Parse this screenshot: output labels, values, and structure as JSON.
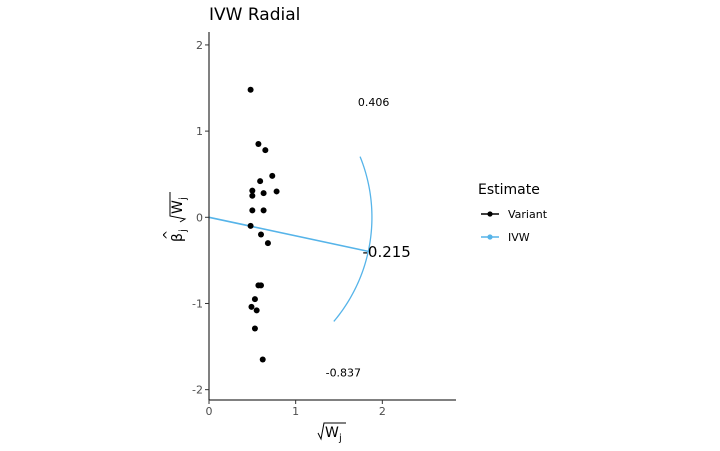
{
  "chart_data": {
    "type": "scatter",
    "title": "IVW Radial",
    "xlim": [
      0,
      2.85
    ],
    "ylim": [
      -2.12,
      2.15
    ],
    "x_ticks": [
      0,
      1,
      2
    ],
    "y_ticks": [
      2,
      1,
      0,
      -1,
      -2
    ],
    "colors": {
      "variant": "#000000",
      "ivw": "#56B4E9"
    },
    "legend": {
      "title": "Estimate",
      "position": "right",
      "items": [
        {
          "label": "Variant",
          "color": "#000000"
        },
        {
          "label": "IVW",
          "color": "#56B4E9"
        }
      ]
    },
    "points": [
      {
        "x": 0.48,
        "y": 1.48
      },
      {
        "x": 0.57,
        "y": 0.85
      },
      {
        "x": 0.65,
        "y": 0.78
      },
      {
        "x": 0.73,
        "y": 0.48
      },
      {
        "x": 0.59,
        "y": 0.42
      },
      {
        "x": 0.5,
        "y": 0.31
      },
      {
        "x": 0.63,
        "y": 0.28
      },
      {
        "x": 0.78,
        "y": 0.3
      },
      {
        "x": 0.5,
        "y": 0.25
      },
      {
        "x": 0.5,
        "y": 0.08
      },
      {
        "x": 0.63,
        "y": 0.08
      },
      {
        "x": 0.48,
        "y": -0.1
      },
      {
        "x": 0.6,
        "y": -0.2
      },
      {
        "x": 0.68,
        "y": -0.3
      },
      {
        "x": 0.57,
        "y": -0.79
      },
      {
        "x": 0.6,
        "y": -0.79
      },
      {
        "x": 0.53,
        "y": -0.95
      },
      {
        "x": 0.49,
        "y": -1.04
      },
      {
        "x": 0.55,
        "y": -1.08
      },
      {
        "x": 0.53,
        "y": -1.29
      },
      {
        "x": 0.62,
        "y": -1.65
      }
    ],
    "ivw_slope": -0.215,
    "arc": {
      "radius": 1.88,
      "angle_from_deg": -40,
      "angle_to_deg": 22
    },
    "annotations": [
      {
        "text": "0.406",
        "x": 1.9,
        "y": 1.29,
        "size": "small"
      },
      {
        "text": "-0.215",
        "x": 2.05,
        "y": -0.46,
        "size": "large"
      },
      {
        "text": "-0.837",
        "x": 1.55,
        "y": -1.85,
        "size": "small"
      }
    ]
  }
}
